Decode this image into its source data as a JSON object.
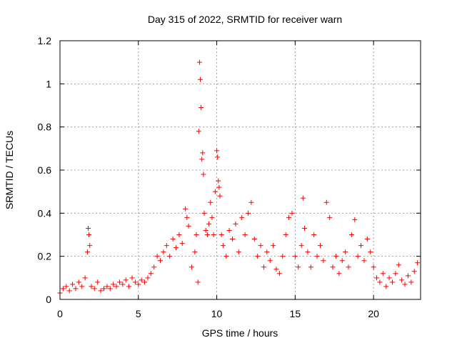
{
  "chart_data": {
    "type": "scatter",
    "title": "Day 315 of 2022, SRMTID for receiver warn",
    "xlabel": "GPS time / hours",
    "ylabel": "SRMTID / TECUs",
    "xlim": [
      0,
      23
    ],
    "ylim": [
      0,
      1.2
    ],
    "xticks": [
      0,
      5,
      10,
      15,
      20
    ],
    "yticks": [
      0,
      0.2,
      0.4,
      0.6,
      0.8,
      1,
      1.2
    ],
    "ytick_labels": [
      "0",
      "0.2",
      "0.4",
      "0.6",
      "0.8",
      "1",
      "1.2"
    ],
    "grid": true,
    "marker": "+",
    "series": [
      {
        "name": "SRMTID",
        "color": "#ff0000",
        "x": [
          0.0,
          0.2,
          0.4,
          0.6,
          0.8,
          1.0,
          1.2,
          1.4,
          1.6,
          1.75,
          1.8,
          1.85,
          1.9,
          2.0,
          2.2,
          2.4,
          2.6,
          2.8,
          3.0,
          3.2,
          3.4,
          3.6,
          3.8,
          4.0,
          4.2,
          4.4,
          4.6,
          4.8,
          5.0,
          5.2,
          5.4,
          5.6,
          5.8,
          6.0,
          6.2,
          6.4,
          6.6,
          6.8,
          7.0,
          7.2,
          7.4,
          7.6,
          7.8,
          8.0,
          8.1,
          8.2,
          8.4,
          8.6,
          8.7,
          8.8,
          8.85,
          8.9,
          8.95,
          9.0,
          9.05,
          9.1,
          9.15,
          9.2,
          9.3,
          9.4,
          9.5,
          9.6,
          9.7,
          9.8,
          9.9,
          10.0,
          10.05,
          10.1,
          10.15,
          10.2,
          10.3,
          10.4,
          10.6,
          10.8,
          11.0,
          11.2,
          11.4,
          11.6,
          11.8,
          12.0,
          12.2,
          12.4,
          12.6,
          12.8,
          13.0,
          13.2,
          13.4,
          13.6,
          13.8,
          14.0,
          14.2,
          14.4,
          14.6,
          14.8,
          15.0,
          15.2,
          15.4,
          15.5,
          15.6,
          15.8,
          16.0,
          16.2,
          16.4,
          16.6,
          16.8,
          17.0,
          17.2,
          17.4,
          17.6,
          17.8,
          18.0,
          18.2,
          18.4,
          18.6,
          18.8,
          19.0,
          19.2,
          19.4,
          19.6,
          19.8,
          20.0,
          20.2,
          20.4,
          20.6,
          20.8,
          21.0,
          21.2,
          21.4,
          21.6,
          21.8,
          22.0,
          22.2,
          22.4,
          22.6,
          22.8
        ],
        "y": [
          0.03,
          0.05,
          0.06,
          0.04,
          0.07,
          0.05,
          0.08,
          0.06,
          0.1,
          0.22,
          0.33,
          0.3,
          0.25,
          0.06,
          0.05,
          0.08,
          0.04,
          0.05,
          0.06,
          0.05,
          0.07,
          0.06,
          0.08,
          0.07,
          0.09,
          0.06,
          0.1,
          0.08,
          0.07,
          0.09,
          0.08,
          0.1,
          0.12,
          0.15,
          0.2,
          0.18,
          0.22,
          0.25,
          0.2,
          0.28,
          0.24,
          0.3,
          0.26,
          0.42,
          0.38,
          0.34,
          0.15,
          0.22,
          0.3,
          0.08,
          0.78,
          1.1,
          1.02,
          0.89,
          0.65,
          0.68,
          0.58,
          0.4,
          0.32,
          0.3,
          0.35,
          0.45,
          0.38,
          0.3,
          0.5,
          0.69,
          0.66,
          0.55,
          0.52,
          0.48,
          0.3,
          0.25,
          0.2,
          0.32,
          0.28,
          0.35,
          0.22,
          0.38,
          0.3,
          0.4,
          0.45,
          0.28,
          0.2,
          0.25,
          0.15,
          0.22,
          0.18,
          0.25,
          0.14,
          0.12,
          0.2,
          0.3,
          0.38,
          0.4,
          0.2,
          0.15,
          0.25,
          0.47,
          0.33,
          0.22,
          0.15,
          0.3,
          0.2,
          0.25,
          0.18,
          0.45,
          0.38,
          0.15,
          0.2,
          0.12,
          0.18,
          0.22,
          0.15,
          0.3,
          0.37,
          0.2,
          0.25,
          0.18,
          0.28,
          0.22,
          0.15,
          0.1,
          0.08,
          0.12,
          0.06,
          0.1,
          0.08,
          0.12,
          0.16,
          0.09,
          0.07,
          0.11,
          0.08,
          0.13,
          0.17
        ]
      }
    ]
  }
}
